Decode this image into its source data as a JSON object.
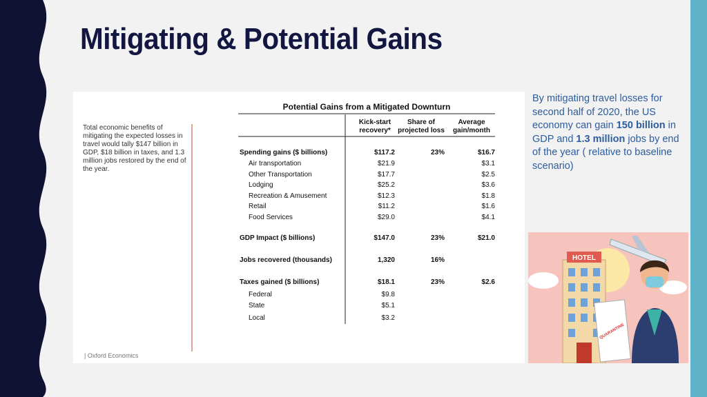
{
  "slide": {
    "title": "Mitigating & Potential Gains",
    "note": "Total economic benefits of mitigating the expected losses in travel would tally $147 billion in GDP, $18 billion in taxes, and 1.3 million jobs restored by the end of the year.",
    "source": "| Oxford Economics",
    "table": {
      "title": "Potential Gains from a Mitigated Downturn",
      "columns": [
        "Kick-start recovery*",
        "Share of projected loss",
        "Average gain/month"
      ],
      "groups": [
        {
          "heading": {
            "label": "Spending gains ($ billions)",
            "kickstart": "$117.2",
            "share": "23%",
            "avg": "$16.7"
          },
          "items": [
            {
              "label": "Air transportation",
              "kickstart": "$21.9",
              "avg": "$3.1"
            },
            {
              "label": "Other Transportation",
              "kickstart": "$17.7",
              "avg": "$2.5"
            },
            {
              "label": "Lodging",
              "kickstart": "$25.2",
              "avg": "$3.6"
            },
            {
              "label": "Recreation & Amusement",
              "kickstart": "$12.3",
              "avg": "$1.8"
            },
            {
              "label": "Retail",
              "kickstart": "$11.2",
              "avg": "$1.6"
            },
            {
              "label": "Food Services",
              "kickstart": "$29.0",
              "avg": "$4.1"
            }
          ]
        },
        {
          "heading": {
            "label": "GDP Impact ($ billions)",
            "kickstart": "$147.0",
            "share": "23%",
            "avg": "$21.0"
          },
          "items": []
        },
        {
          "heading": {
            "label": "Jobs recovered (thousands)",
            "kickstart": "1,320",
            "share": "16%"
          },
          "items": []
        },
        {
          "heading": {
            "label": "Taxes gained ($ billions)",
            "kickstart": "$18.1",
            "share": "23%",
            "avg": "$2.6"
          },
          "items": [
            {
              "label": "Federal",
              "kickstart": "$9.8"
            },
            {
              "label": "State",
              "kickstart": "$5.1"
            },
            {
              "label": "Local",
              "kickstart": "$3.2"
            }
          ]
        }
      ]
    },
    "summary": [
      "By mitigating travel losses for second half of 2020, the US economy can gain ",
      "150 billion",
      " in GDP and ",
      "1.3 million",
      " jobs by end of the year ( relative to baseline scenario)"
    ],
    "illustration": {
      "sign": "HOTEL",
      "stamp": "QUARANTINE"
    }
  }
}
